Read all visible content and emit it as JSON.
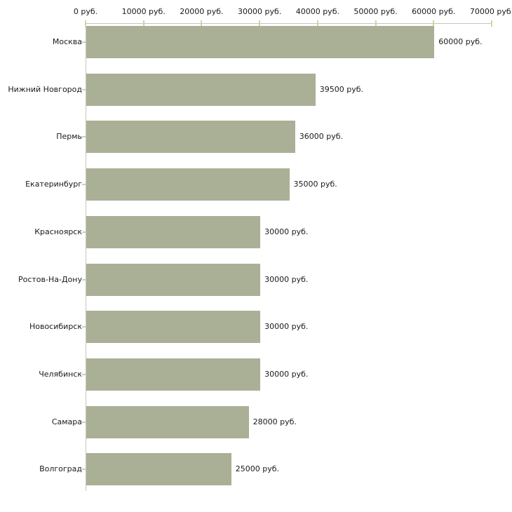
{
  "chart_data": {
    "type": "bar",
    "orientation": "horizontal",
    "title": "",
    "xlabel": "",
    "ylabel": "",
    "categories": [
      "Москва",
      "Нижний Новгород",
      "Пермь",
      "Екатеринбург",
      "Красноярск",
      "Ростов-На-Дону",
      "Новосибирск",
      "Челябинск",
      "Самара",
      "Волгоград"
    ],
    "values": [
      60000,
      39500,
      36000,
      35000,
      30000,
      30000,
      30000,
      30000,
      28000,
      25000
    ],
    "value_labels": [
      "60000 руб.",
      "39500 руб.",
      "36000 руб.",
      "35000 руб.",
      "30000 руб.",
      "30000 руб.",
      "30000 руб.",
      "30000 руб.",
      "28000 руб.",
      "25000 руб."
    ],
    "x_axis": {
      "position": "top",
      "range": [
        0,
        70000
      ],
      "ticks": [
        0,
        10000,
        20000,
        30000,
        40000,
        50000,
        60000,
        70000
      ],
      "tick_labels": [
        "0 руб.",
        "10000 руб.",
        "20000 руб.",
        "30000 руб.",
        "40000 руб.",
        "50000 руб.",
        "60000 руб.",
        "70000 руб."
      ]
    },
    "grid": false,
    "legend": false,
    "colors": {
      "bar": "#aab096",
      "axis_line": "#c5c5bf",
      "tick_mark": "#d2d2a4",
      "text": "#1a1a1a",
      "background": "#ffffff"
    }
  }
}
